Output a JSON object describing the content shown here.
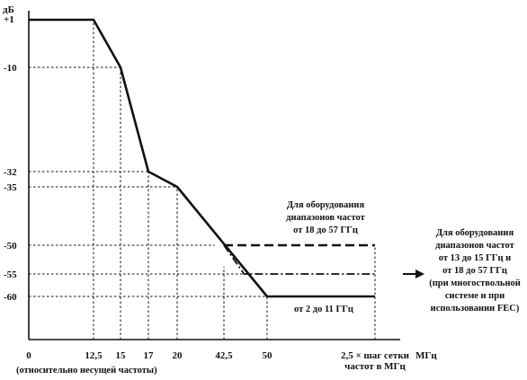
{
  "chart_data": {
    "type": "line",
    "ylabel": "дБ",
    "xlabel": "МГц",
    "x_ticks": [
      {
        "value": 0,
        "label": "0"
      },
      {
        "value": 12.5,
        "label": "12,5"
      },
      {
        "value": 15,
        "label": "15"
      },
      {
        "value": 17,
        "label": "17"
      },
      {
        "value": 20,
        "label": "20"
      },
      {
        "value": 42.5,
        "label": "42,5"
      },
      {
        "value": 50,
        "label": "50"
      },
      {
        "value": 70,
        "label": "2,5 × шаг сетки"
      }
    ],
    "x_tick_sublabel": "частот в МГц",
    "x_axis_note": "(относительно несущей частоты)",
    "y_ticks": [
      {
        "value": 1,
        "label": "+1"
      },
      {
        "value": -10,
        "label": "-10"
      },
      {
        "value": -32,
        "label": "-32"
      },
      {
        "value": -35,
        "label": "-35"
      },
      {
        "value": -50,
        "label": "-50"
      },
      {
        "value": -55,
        "label": "-55"
      },
      {
        "value": -60,
        "label": "-60"
      }
    ],
    "series": [
      {
        "style": "solid",
        "values": [
          [
            0,
            1
          ],
          [
            12.5,
            1
          ],
          [
            15,
            -10
          ],
          [
            17,
            -32
          ],
          [
            20,
            -35
          ],
          [
            50,
            -60
          ],
          [
            70,
            -60
          ]
        ]
      },
      {
        "style": "dashed",
        "values": [
          [
            42.5,
            -50
          ],
          [
            70,
            -50
          ]
        ]
      },
      {
        "style": "dash-dot",
        "values": [
          [
            42.5,
            -50
          ],
          [
            46,
            -55
          ],
          [
            70,
            -55
          ]
        ]
      }
    ],
    "annotations": {
      "upper": [
        "Для оборудования",
        "диапазонов частот",
        "от 18 до 57 ГГц"
      ],
      "right": [
        "Для оборудования",
        "диапазонов частот",
        "от 13 до 15 ГГц и",
        "от 18 до 57 ГГц",
        "(при многоствольной",
        "системе и при",
        "использовании FEC)"
      ],
      "lower": "от 2 до 11 ГГц"
    }
  }
}
